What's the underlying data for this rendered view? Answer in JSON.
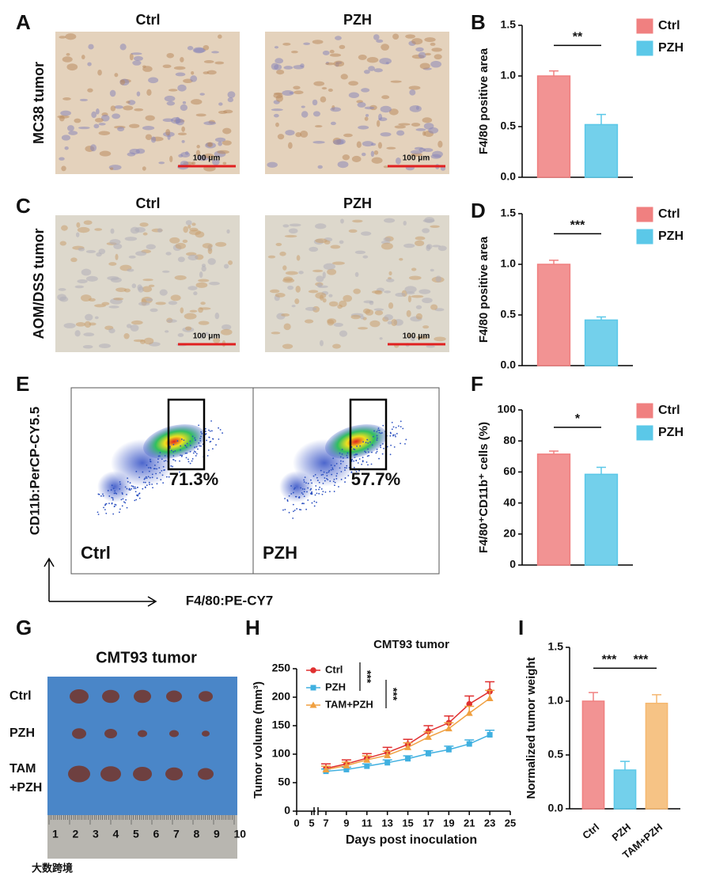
{
  "panel_labels": [
    "A",
    "B",
    "C",
    "D",
    "E",
    "F",
    "G",
    "H",
    "I"
  ],
  "panel_a": {
    "row_label": "MC38 tumor",
    "columns": [
      "Ctrl",
      "PZH"
    ],
    "scale_bar": "100 μm"
  },
  "panel_c": {
    "row_label": "AOM/DSS tumor",
    "columns": [
      "Ctrl",
      "PZH"
    ],
    "scale_bar": "100 μm"
  },
  "panel_e": {
    "y_label": "CD11b:PerCP-CY5.5",
    "x_label": "F4/80:PE-CY7",
    "plots": [
      {
        "name": "Ctrl",
        "gate": "71.3%"
      },
      {
        "name": "PZH",
        "gate": "57.7%"
      }
    ]
  },
  "panel_g": {
    "title": "CMT93 tumor",
    "rows": [
      [
        "Ctrl"
      ],
      [
        "PZH"
      ],
      [
        "TAM",
        "+PZH"
      ]
    ],
    "ruler_labels": [
      1,
      2,
      3,
      4,
      5,
      6,
      7,
      8,
      9,
      10
    ]
  },
  "watermark": "大数跨境",
  "chart_data": [
    {
      "type": "bar",
      "y_label": "F4/80 positive area",
      "ylim": [
        0,
        1.5
      ],
      "yticks": [
        {
          "value": 0,
          "label": "0.0"
        },
        0.5,
        {
          "value": 1,
          "label": "1.0"
        },
        1.5
      ],
      "series": [
        {
          "name": "Ctrl",
          "color": "#f08080",
          "values": [
            1.0
          ],
          "errors": [
            0.05
          ]
        },
        {
          "name": "PZH",
          "color": "#5bc8e8",
          "values": [
            0.52
          ],
          "errors": [
            0.1
          ]
        }
      ],
      "significance": [
        "**"
      ]
    },
    {
      "type": "bar",
      "y_label": "F4/80 positive area",
      "ylim": [
        0,
        1.5
      ],
      "yticks": [
        {
          "value": 0,
          "label": "0.0"
        },
        0.5,
        {
          "value": 1,
          "label": "1.0"
        },
        1.5
      ],
      "series": [
        {
          "name": "Ctrl",
          "color": "#f08080",
          "values": [
            1.0
          ],
          "errors": [
            0.04
          ]
        },
        {
          "name": "PZH",
          "color": "#5bc8e8",
          "values": [
            0.45
          ],
          "errors": [
            0.03
          ]
        }
      ],
      "significance": [
        "***"
      ]
    },
    {
      "type": "bar",
      "y_label": "F4/80⁺CD11b⁺ cells (%)",
      "ylim": [
        0,
        100
      ],
      "yticks": [
        0,
        20,
        40,
        60,
        80,
        100
      ],
      "series": [
        {
          "name": "Ctrl",
          "color": "#f08080",
          "values": [
            71.5
          ],
          "errors": [
            2
          ]
        },
        {
          "name": "PZH",
          "color": "#5bc8e8",
          "values": [
            58.5
          ],
          "errors": [
            4.5
          ]
        }
      ],
      "significance": [
        "*"
      ]
    },
    {
      "type": "line",
      "title": "CMT93 tumor",
      "x_label": "Days post inoculation",
      "y_label": "Tumor volume (mm³)",
      "x": [
        7,
        9,
        11,
        13,
        15,
        17,
        19,
        21,
        23
      ],
      "xlim": [
        0,
        25
      ],
      "xticks": [
        0,
        5,
        7,
        9,
        11,
        13,
        15,
        17,
        19,
        21,
        23,
        25
      ],
      "ylim": [
        0,
        250
      ],
      "yticks": [
        0,
        50,
        100,
        150,
        200,
        250
      ],
      "series": [
        {
          "name": "Ctrl",
          "color": "#e03030",
          "marker": "circle",
          "values": [
            75,
            83,
            93,
            103,
            117,
            140,
            155,
            188,
            210
          ],
          "errors": [
            8,
            7,
            8,
            9,
            9,
            10,
            12,
            14,
            17
          ]
        },
        {
          "name": "PZH",
          "color": "#40b0e0",
          "marker": "square",
          "values": [
            70,
            73,
            79,
            85,
            92,
            101,
            108,
            118,
            134
          ],
          "errors": [
            4,
            4,
            4,
            5,
            5,
            5,
            6,
            7,
            8
          ]
        },
        {
          "name": "TAM+PZH",
          "color": "#f0a040",
          "marker": "triangle",
          "values": [
            73,
            80,
            90,
            98,
            112,
            130,
            145,
            172,
            198
          ],
          "errors": [
            6,
            6,
            7,
            7,
            8,
            9,
            10,
            12,
            14
          ]
        }
      ],
      "significance": [
        "***",
        "***"
      ]
    },
    {
      "type": "bar",
      "y_label": "Normalized tumor weight",
      "categories": [
        "Ctrl",
        "PZH",
        "TAM+PZH"
      ],
      "values": [
        1.0,
        0.36,
        0.98
      ],
      "errors": [
        0.08,
        0.08,
        0.08
      ],
      "colors": [
        "#f08080",
        "#5bc8e8",
        "#f5b870"
      ],
      "ylim": [
        0,
        1.5
      ],
      "yticks": [
        {
          "value": 0,
          "label": "0.0"
        },
        0.5,
        {
          "value": 1,
          "label": "1.0"
        },
        1.5
      ],
      "significance": [
        "***",
        "***"
      ]
    }
  ]
}
